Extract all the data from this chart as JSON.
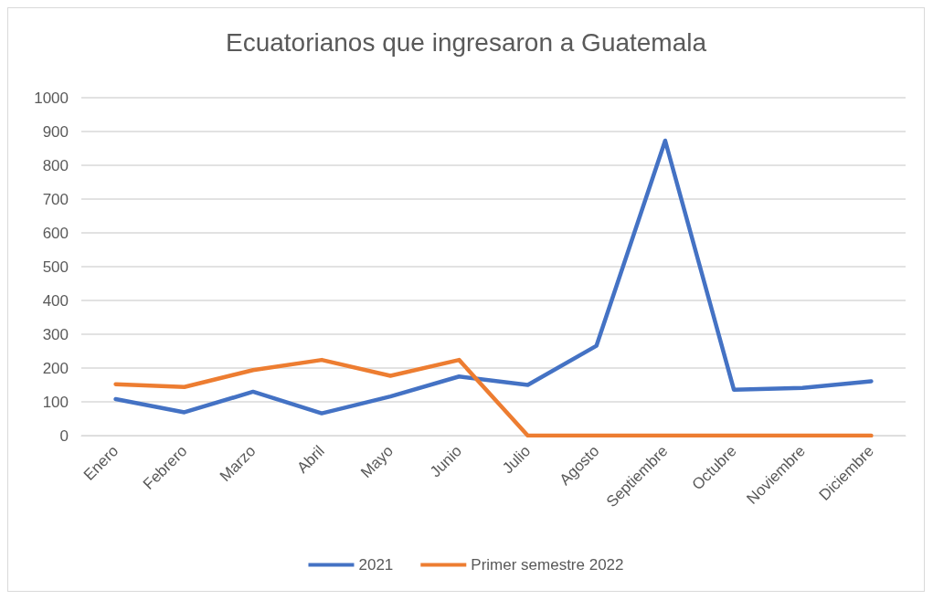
{
  "chart_data": {
    "type": "line",
    "title": "Ecuatorianos que ingresaron a Guatemala",
    "categories": [
      "Enero",
      "Febrero",
      "Marzo",
      "Abril",
      "Mayo",
      "Junio",
      "Julio",
      "Agosto",
      "Septiembre",
      "Octubre",
      "Noviembre",
      "Diciembre"
    ],
    "series": [
      {
        "name": "2021",
        "color": "#4472c4",
        "values": [
          108,
          69,
          130,
          66,
          116,
          175,
          150,
          266,
          873,
          136,
          141,
          161
        ]
      },
      {
        "name": "Primer semestre 2022",
        "color": "#ed7d31",
        "values": [
          152,
          144,
          194,
          224,
          177,
          224,
          0,
          0,
          0,
          0,
          0,
          0
        ]
      }
    ],
    "ylim": [
      0,
      1000
    ],
    "yticks": [
      0,
      100,
      200,
      300,
      400,
      500,
      600,
      700,
      800,
      900,
      1000
    ],
    "grid": "y",
    "legend": "bottom",
    "marker": "none",
    "line_style": "solid"
  }
}
